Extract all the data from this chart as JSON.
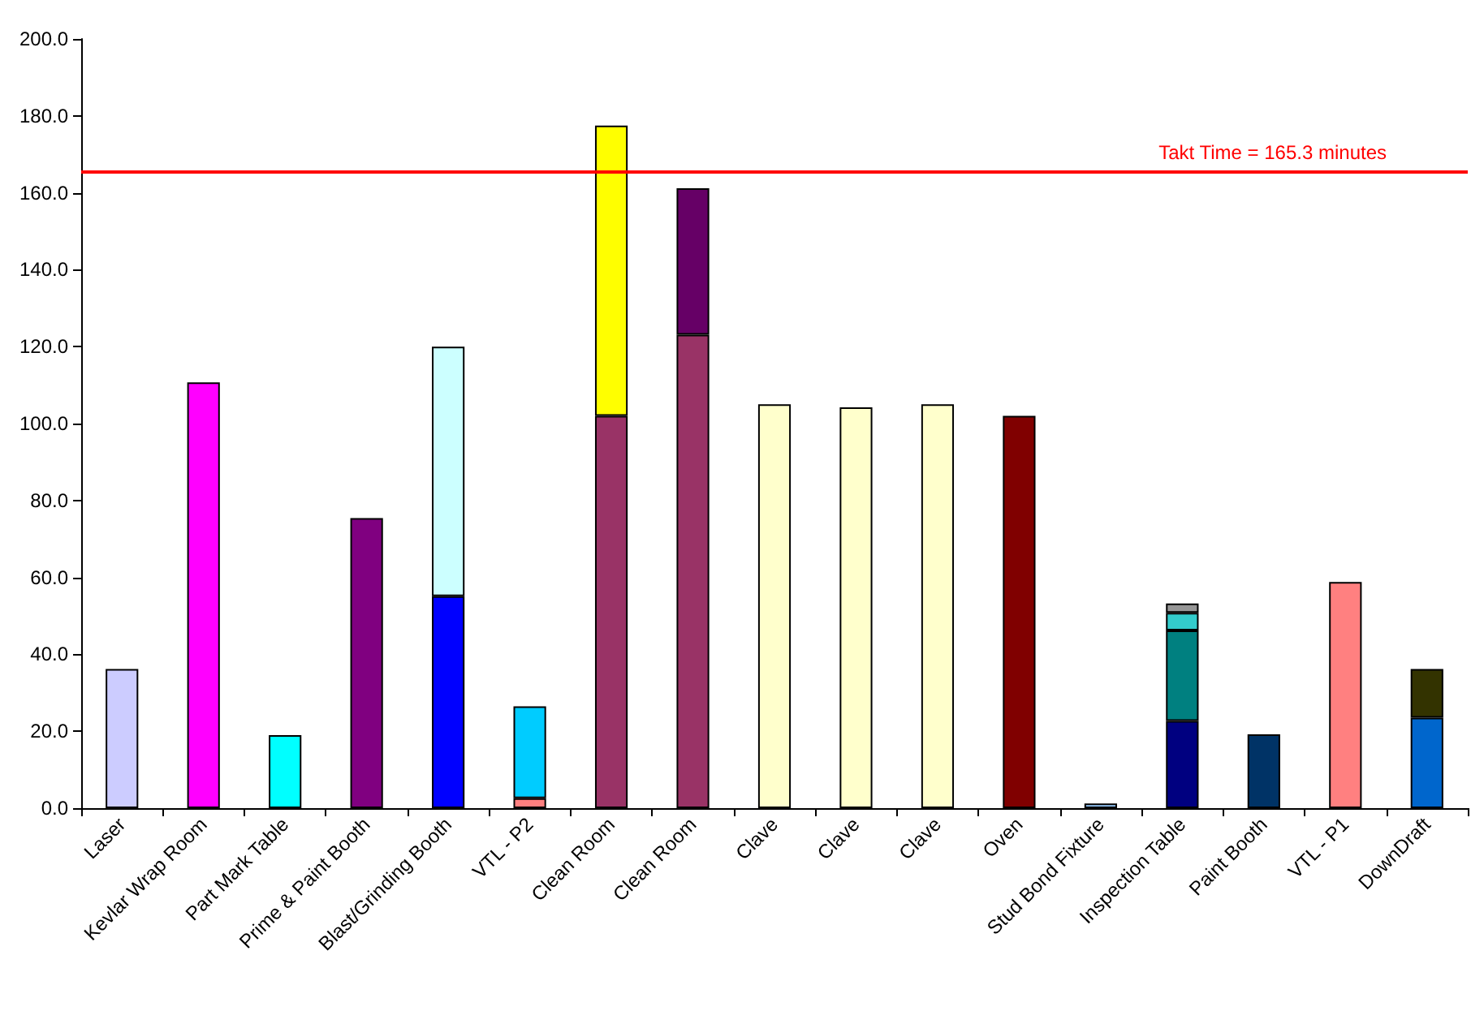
{
  "chart_data": {
    "type": "bar",
    "stacked": true,
    "categories": [
      "Laser",
      "Kevlar Wrap Room",
      "Part Mark Table",
      "Prime & Paint Booth",
      "Blast/Grinding Booth",
      "VTL - P2",
      "Clean Room",
      "Clean Room",
      "Clave",
      "Clave",
      "Clave",
      "Oven",
      "Stud Bond Fixture",
      "Inspection Table",
      "Paint Booth",
      "VTL - P1",
      "DownDraft"
    ],
    "series": [
      {
        "values": [
          36.2,
          110.7,
          19.0,
          75.4,
          55.1,
          2.6,
          102.0,
          123.1,
          105.0,
          104.2,
          105.0,
          102.0,
          1.2,
          22.7,
          19.2,
          58.8,
          23.5
        ],
        "colors": [
          "#ccccff",
          "#ff00ff",
          "#00ffff",
          "#800080",
          "#0000ff",
          "#ff8080",
          "#993366",
          "#993366",
          "#ffffcc",
          "#ffffcc",
          "#ffffcc",
          "#800000",
          "#99ccff",
          "#000080",
          "#003366",
          "#ff8080",
          "#0066cc"
        ]
      },
      {
        "values": [
          null,
          null,
          null,
          null,
          64.9,
          23.9,
          75.5,
          38.1,
          null,
          null,
          null,
          null,
          null,
          23.5,
          null,
          null,
          12.7
        ],
        "colors": [
          null,
          null,
          null,
          null,
          "#ccffff",
          "#00ccff",
          "#ffff00",
          "#660066",
          null,
          null,
          null,
          null,
          null,
          "#008080",
          null,
          null,
          "#333300"
        ]
      },
      {
        "values": [
          null,
          null,
          null,
          null,
          null,
          null,
          null,
          null,
          null,
          null,
          null,
          null,
          null,
          4.6,
          null,
          null,
          null
        ],
        "colors": [
          null,
          null,
          null,
          null,
          null,
          null,
          null,
          null,
          null,
          null,
          null,
          null,
          null,
          "#33cccc",
          null,
          null,
          null
        ]
      },
      {
        "values": [
          null,
          null,
          null,
          null,
          null,
          null,
          null,
          null,
          null,
          null,
          null,
          null,
          null,
          2.4,
          null,
          null,
          null
        ],
        "colors": [
          null,
          null,
          null,
          null,
          null,
          null,
          null,
          null,
          null,
          null,
          null,
          null,
          null,
          "#969696",
          null,
          null,
          null
        ]
      }
    ],
    "ylim": [
      0,
      200
    ],
    "yticks": [
      {
        "value": 0,
        "label": "0.0"
      },
      {
        "value": 20,
        "label": "20.0"
      },
      {
        "value": 40,
        "label": "40.0"
      },
      {
        "value": 60,
        "label": "60.0"
      },
      {
        "value": 80,
        "label": "80.0"
      },
      {
        "value": 100,
        "label": "100.0"
      },
      {
        "value": 120,
        "label": "120.0"
      },
      {
        "value": 140,
        "label": "140.0"
      },
      {
        "value": 160,
        "label": "160.0"
      },
      {
        "value": 180,
        "label": "180.0"
      },
      {
        "value": 200,
        "label": "200.0"
      }
    ],
    "ref_lines": [
      {
        "axis": "y",
        "value": 165.3,
        "label": "Takt Time = 165.3 minutes",
        "color": "#ff0000"
      }
    ],
    "grid": false
  }
}
